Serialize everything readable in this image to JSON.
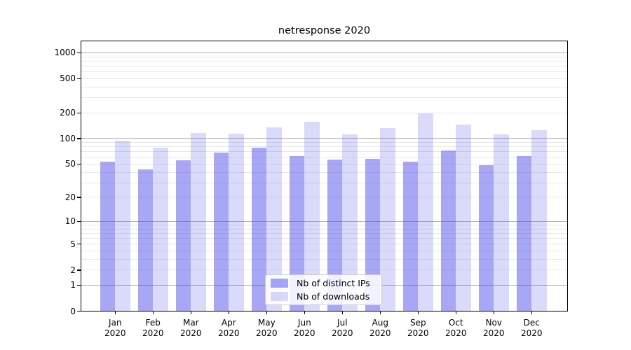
{
  "title": "netresponse 2020",
  "legend": {
    "position": "lower center",
    "items": [
      "Nb of distinct IPs",
      "Nb of downloads"
    ]
  },
  "colors": {
    "ips_bar": "rgba(68,68,236,0.47)",
    "downloads_bar": "rgba(68,68,236,0.20)",
    "major_grid": "#b0b0b0",
    "minor_grid": "#e8e8e8",
    "spine": "#000000",
    "legend_border": "#cccccc",
    "text": "#000000"
  },
  "y_axis": {
    "tick_labels": [
      "1000",
      "500",
      "200",
      "100",
      "50",
      "20",
      "10",
      "5",
      "2",
      "1",
      "0"
    ],
    "tick_values": [
      1000,
      500,
      200,
      100,
      50,
      20,
      10,
      5,
      2,
      1,
      0
    ]
  },
  "x_axis": {
    "months": [
      "Jan",
      "Feb",
      "Mar",
      "Apr",
      "May",
      "Jun",
      "Jul",
      "Aug",
      "Sep",
      "Oct",
      "Nov",
      "Dec"
    ],
    "year": "2020"
  },
  "chart_data": {
    "type": "bar",
    "title": "netresponse 2020",
    "categories": [
      "Jan 2020",
      "Feb 2020",
      "Mar 2020",
      "Apr 2020",
      "May 2020",
      "Jun 2020",
      "Jul 2020",
      "Aug 2020",
      "Sep 2020",
      "Oct 2020",
      "Nov 2020",
      "Dec 2020"
    ],
    "series": [
      {
        "name": "Nb of distinct IPs",
        "color": "rgba(68,68,236,0.47)",
        "values": [
          53,
          43,
          55,
          68,
          77,
          62,
          56,
          57,
          53,
          72,
          48,
          62
        ]
      },
      {
        "name": "Nb of downloads",
        "color": "rgba(68,68,236,0.20)",
        "values": [
          94,
          78,
          116,
          114,
          135,
          156,
          112,
          131,
          195,
          145,
          112,
          124
        ]
      }
    ],
    "xlabel": "",
    "ylabel": "",
    "yscale": "symlog (log10 of 1+value)",
    "ylim": [
      0,
      1380
    ],
    "yticks": [
      0,
      1,
      2,
      5,
      10,
      20,
      50,
      100,
      200,
      500,
      1000
    ],
    "major_gridlines": [
      1,
      10,
      100,
      1000
    ],
    "minor_gridlines": [
      2,
      3,
      4,
      5,
      6,
      7,
      8,
      9,
      20,
      30,
      40,
      50,
      60,
      70,
      80,
      90,
      200,
      300,
      400,
      500,
      600,
      700,
      800,
      900
    ],
    "grid": true,
    "legend_position": "lower center"
  }
}
